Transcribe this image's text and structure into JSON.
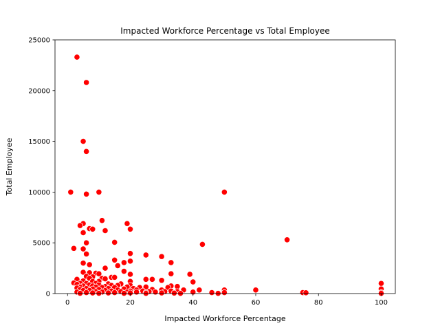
{
  "chart_data": {
    "type": "scatter",
    "title": "Impacted Workforce Percentage vs Total Employee",
    "xlabel": "Impacted Workforce Percentage",
    "ylabel": "Total Employee",
    "xlim": [
      -4,
      104.5
    ],
    "ylim": [
      0,
      25000
    ],
    "xticks": [
      0,
      20,
      40,
      60,
      80,
      100
    ],
    "yticks": [
      0,
      5000,
      10000,
      15000,
      20000,
      25000
    ],
    "grid": false,
    "legend": "none",
    "point_color": "#ff0000",
    "point_edge_color": "#ffffff",
    "points": [
      {
        "x": 3,
        "y": 23300
      },
      {
        "x": 6,
        "y": 20800
      },
      {
        "x": 5,
        "y": 15000
      },
      {
        "x": 6,
        "y": 14000
      },
      {
        "x": 1,
        "y": 10000
      },
      {
        "x": 10,
        "y": 10000
      },
      {
        "x": 6,
        "y": 9800
      },
      {
        "x": 50,
        "y": 10000
      },
      {
        "x": 11,
        "y": 7200
      },
      {
        "x": 5,
        "y": 6900
      },
      {
        "x": 4,
        "y": 6700
      },
      {
        "x": 19,
        "y": 6900
      },
      {
        "x": 7,
        "y": 6400
      },
      {
        "x": 8,
        "y": 6350
      },
      {
        "x": 20,
        "y": 6350
      },
      {
        "x": 12,
        "y": 6200
      },
      {
        "x": 5,
        "y": 6000
      },
      {
        "x": 70,
        "y": 5300
      },
      {
        "x": 15,
        "y": 5050
      },
      {
        "x": 6,
        "y": 5000
      },
      {
        "x": 43,
        "y": 4850
      },
      {
        "x": 2,
        "y": 4450
      },
      {
        "x": 5,
        "y": 4400
      },
      {
        "x": 20,
        "y": 3950
      },
      {
        "x": 6,
        "y": 3900
      },
      {
        "x": 25,
        "y": 3800
      },
      {
        "x": 30,
        "y": 3650
      },
      {
        "x": 15,
        "y": 3300
      },
      {
        "x": 20,
        "y": 3200
      },
      {
        "x": 18,
        "y": 3050
      },
      {
        "x": 33,
        "y": 3050
      },
      {
        "x": 5,
        "y": 3000
      },
      {
        "x": 7,
        "y": 2850
      },
      {
        "x": 16,
        "y": 2750
      },
      {
        "x": 12,
        "y": 2500
      },
      {
        "x": 18,
        "y": 2200
      },
      {
        "x": 5,
        "y": 2100
      },
      {
        "x": 7,
        "y": 2050
      },
      {
        "x": 9,
        "y": 2000
      },
      {
        "x": 10,
        "y": 1950
      },
      {
        "x": 33,
        "y": 1950
      },
      {
        "x": 20,
        "y": 1900
      },
      {
        "x": 39,
        "y": 1900
      },
      {
        "x": 6,
        "y": 1700
      },
      {
        "x": 8,
        "y": 1650
      },
      {
        "x": 14,
        "y": 1600
      },
      {
        "x": 15,
        "y": 1600
      },
      {
        "x": 7,
        "y": 1500
      },
      {
        "x": 11,
        "y": 1500
      },
      {
        "x": 12,
        "y": 1450
      },
      {
        "x": 3,
        "y": 1400
      },
      {
        "x": 25,
        "y": 1400
      },
      {
        "x": 27,
        "y": 1400
      },
      {
        "x": 30,
        "y": 1300
      },
      {
        "x": 5,
        "y": 1250
      },
      {
        "x": 8,
        "y": 1200
      },
      {
        "x": 10,
        "y": 1200
      },
      {
        "x": 20,
        "y": 1200
      },
      {
        "x": 40,
        "y": 1150
      },
      {
        "x": 2,
        "y": 1050
      },
      {
        "x": 4,
        "y": 1000
      },
      {
        "x": 6,
        "y": 1000
      },
      {
        "x": 9,
        "y": 1000
      },
      {
        "x": 13,
        "y": 950
      },
      {
        "x": 17,
        "y": 950
      },
      {
        "x": 100,
        "y": 1000
      },
      {
        "x": 3,
        "y": 900
      },
      {
        "x": 7,
        "y": 850
      },
      {
        "x": 10,
        "y": 850
      },
      {
        "x": 14,
        "y": 800
      },
      {
        "x": 16,
        "y": 800
      },
      {
        "x": 20,
        "y": 800
      },
      {
        "x": 5,
        "y": 750
      },
      {
        "x": 8,
        "y": 750
      },
      {
        "x": 12,
        "y": 700
      },
      {
        "x": 33,
        "y": 750
      },
      {
        "x": 35,
        "y": 700
      },
      {
        "x": 4,
        "y": 650
      },
      {
        "x": 9,
        "y": 650
      },
      {
        "x": 19,
        "y": 650
      },
      {
        "x": 25,
        "y": 650
      },
      {
        "x": 11,
        "y": 600
      },
      {
        "x": 15,
        "y": 600
      },
      {
        "x": 23,
        "y": 600
      },
      {
        "x": 32,
        "y": 600
      },
      {
        "x": 3,
        "y": 550
      },
      {
        "x": 6,
        "y": 500
      },
      {
        "x": 13,
        "y": 500
      },
      {
        "x": 21,
        "y": 500
      },
      {
        "x": 8,
        "y": 450
      },
      {
        "x": 18,
        "y": 450
      },
      {
        "x": 27,
        "y": 400
      },
      {
        "x": 4,
        "y": 400
      },
      {
        "x": 10,
        "y": 400
      },
      {
        "x": 16,
        "y": 350
      },
      {
        "x": 22,
        "y": 350
      },
      {
        "x": 30,
        "y": 350
      },
      {
        "x": 37,
        "y": 350
      },
      {
        "x": 42,
        "y": 350
      },
      {
        "x": 50,
        "y": 350
      },
      {
        "x": 60,
        "y": 350
      },
      {
        "x": 100,
        "y": 450
      },
      {
        "x": 5,
        "y": 300
      },
      {
        "x": 7,
        "y": 300
      },
      {
        "x": 12,
        "y": 300
      },
      {
        "x": 14,
        "y": 250
      },
      {
        "x": 20,
        "y": 250
      },
      {
        "x": 24,
        "y": 250
      },
      {
        "x": 33,
        "y": 250
      },
      {
        "x": 35,
        "y": 200
      },
      {
        "x": 9,
        "y": 200
      },
      {
        "x": 17,
        "y": 200
      },
      {
        "x": 26,
        "y": 200
      },
      {
        "x": 31,
        "y": 200
      },
      {
        "x": 3,
        "y": 150
      },
      {
        "x": 11,
        "y": 150
      },
      {
        "x": 19,
        "y": 150
      },
      {
        "x": 22,
        "y": 150
      },
      {
        "x": 28,
        "y": 150
      },
      {
        "x": 40,
        "y": 150
      },
      {
        "x": 46,
        "y": 100
      },
      {
        "x": 50,
        "y": 100
      },
      {
        "x": 6,
        "y": 100
      },
      {
        "x": 15,
        "y": 100
      },
      {
        "x": 25,
        "y": 100
      },
      {
        "x": 75,
        "y": 100
      },
      {
        "x": 76,
        "y": 80
      },
      {
        "x": 100,
        "y": 100
      },
      {
        "x": 8,
        "y": 60
      },
      {
        "x": 13,
        "y": 60
      },
      {
        "x": 20,
        "y": 60
      },
      {
        "x": 30,
        "y": 60
      },
      {
        "x": 34,
        "y": 50
      },
      {
        "x": 48,
        "y": 20
      },
      {
        "x": 4,
        "y": 30
      },
      {
        "x": 10,
        "y": 30
      },
      {
        "x": 18,
        "y": 30
      },
      {
        "x": 25,
        "y": 20
      },
      {
        "x": 36,
        "y": 20
      },
      {
        "x": 100,
        "y": 20
      }
    ]
  }
}
